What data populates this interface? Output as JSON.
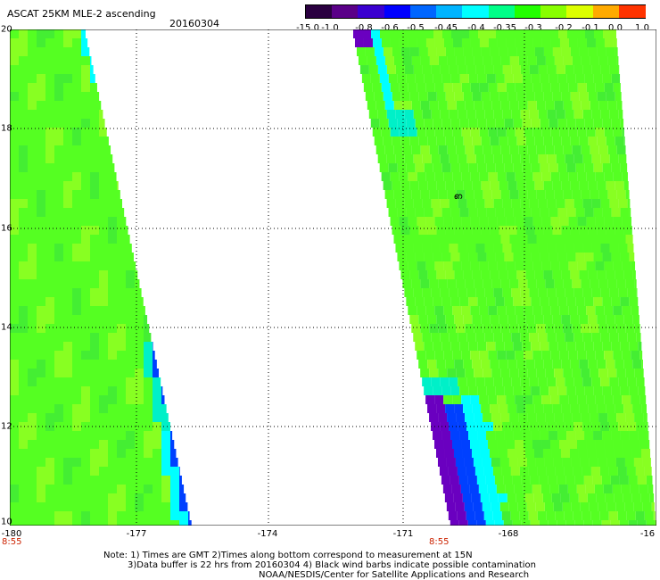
{
  "header": {
    "title": "ASCAT 25KM MLE-2 ascending",
    "date": "20160304"
  },
  "colorbar": {
    "labels": [
      "-15.0",
      "-1.0",
      "-0.8",
      "-0.6",
      "-0.5",
      "-0.45",
      "-0.4",
      "-0.35",
      "-0.3",
      "-0.2",
      "-0.1",
      "0.0",
      "1.0"
    ],
    "colors": [
      "#2a0040",
      "#5a0088",
      "#3a00d0",
      "#0000ff",
      "#0066ff",
      "#00b4ff",
      "#00ffff",
      "#00ff88",
      "#22ff00",
      "#88ff00",
      "#ddff00",
      "#ffaa00",
      "#ff3300"
    ]
  },
  "map": {
    "lon_range": [
      -180,
      -166
    ],
    "lat_range": [
      10,
      20
    ],
    "y_tick_labels": [
      "20",
      "18",
      "16",
      "14",
      "12",
      "10"
    ],
    "x_tick_labels": [
      "-180",
      "-177",
      "-174",
      "-171",
      "-168",
      "-16"
    ],
    "pass_times": [
      "8:55",
      "8:55"
    ],
    "swath_colors": {
      "main": "#55ff22",
      "light": "#88ff22",
      "cyan": "#00f0c8",
      "aqua": "#00ffff",
      "blue": "#0040ff",
      "navy": "#2000d0",
      "purple": "#6a00c0"
    },
    "barb_label": "ഩ"
  },
  "footer": {
    "note_line1": "Note: 1) Times are GMT 2)Times along bottom correspond to measurement at 15N",
    "note_line2": "3)Data buffer is 22 hrs from 20160304 4) Black wind barbs indicate possible contamination",
    "credit": "NOAA/NESDIS/Center for Satellite Applications and Research"
  }
}
